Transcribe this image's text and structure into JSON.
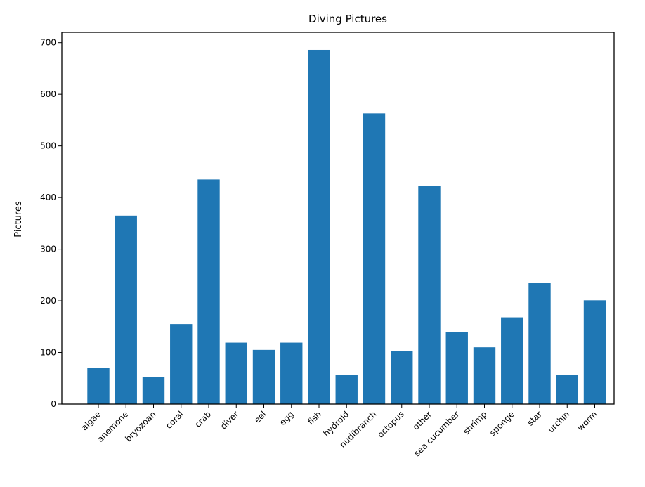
{
  "chart_data": {
    "type": "bar",
    "title": "Diving Pictures",
    "xlabel": "",
    "ylabel": "Pictures",
    "categories": [
      "algae",
      "anemone",
      "bryozoan",
      "coral",
      "crab",
      "diver",
      "eel",
      "egg",
      "fish",
      "hydroid",
      "nudibranch",
      "octopus",
      "other",
      "sea cucumber",
      "shrimp",
      "sponge",
      "star",
      "urchin",
      "worm"
    ],
    "values": [
      70,
      365,
      53,
      155,
      435,
      119,
      105,
      119,
      686,
      57,
      563,
      103,
      423,
      139,
      110,
      168,
      235,
      57,
      201
    ],
    "ylim": [
      0,
      720
    ],
    "yticks": [
      0,
      100,
      200,
      300,
      400,
      500,
      600,
      700
    ],
    "bar_color": "#1f77b4",
    "grid": false,
    "legend": "none"
  }
}
